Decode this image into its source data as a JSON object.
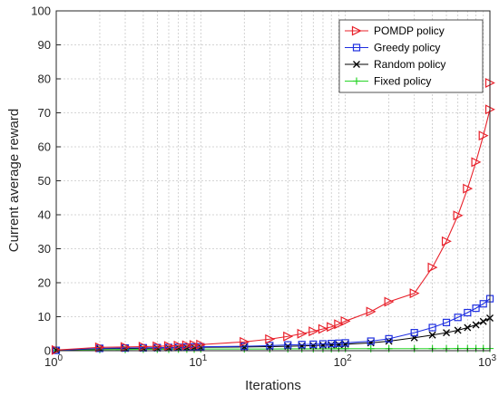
{
  "chart_data": {
    "type": "line",
    "xscale": "log",
    "xlim": [
      1,
      1000
    ],
    "ylim": [
      0,
      100
    ],
    "xlabel": "Iterations",
    "ylabel": "Current average reward",
    "grid": true,
    "legend_position": "top-right",
    "y_ticks": [
      0,
      10,
      20,
      30,
      40,
      50,
      60,
      70,
      80,
      90,
      100
    ],
    "x_ticks": [
      {
        "value": 1,
        "base": "10",
        "exp": "0"
      },
      {
        "value": 10,
        "base": "10",
        "exp": "1"
      },
      {
        "value": 100,
        "base": "10",
        "exp": "2"
      },
      {
        "value": 1000,
        "base": "10",
        "exp": "3"
      }
    ],
    "series": [
      {
        "name": "POMDP policy",
        "color": "#e8202a",
        "marker": "triangle-right",
        "points": [
          [
            1,
            0.2
          ],
          [
            2,
            1.0
          ],
          [
            3,
            1.1
          ],
          [
            4,
            1.2
          ],
          [
            5,
            1.3
          ],
          [
            6,
            1.4
          ],
          [
            7,
            1.5
          ],
          [
            8,
            1.6
          ],
          [
            9,
            1.7
          ],
          [
            10,
            1.8
          ],
          [
            20,
            2.6
          ],
          [
            30,
            3.4
          ],
          [
            40,
            4.2
          ],
          [
            50,
            5.0
          ],
          [
            60,
            5.7
          ],
          [
            70,
            6.4
          ],
          [
            80,
            7.0
          ],
          [
            90,
            7.8
          ],
          [
            100,
            8.7
          ],
          [
            150,
            11.5
          ],
          [
            200,
            14.4
          ],
          [
            300,
            16.9
          ],
          [
            400,
            24.5
          ],
          [
            500,
            32.2
          ],
          [
            600,
            39.8
          ],
          [
            700,
            47.7
          ],
          [
            800,
            55.5
          ],
          [
            900,
            63.3
          ],
          [
            1000,
            71.0
          ],
          [
            1050,
            78.8
          ]
        ]
      },
      {
        "name": "Greedy policy",
        "color": "#1f2fe0",
        "marker": "square",
        "points": [
          [
            1,
            0.1
          ],
          [
            2,
            0.7
          ],
          [
            3,
            0.8
          ],
          [
            4,
            0.85
          ],
          [
            5,
            0.9
          ],
          [
            6,
            0.95
          ],
          [
            7,
            1.0
          ],
          [
            8,
            1.05
          ],
          [
            9,
            1.1
          ],
          [
            10,
            1.15
          ],
          [
            20,
            1.3
          ],
          [
            30,
            1.5
          ],
          [
            40,
            1.7
          ],
          [
            50,
            1.8
          ],
          [
            60,
            1.9
          ],
          [
            70,
            2.0
          ],
          [
            80,
            2.1
          ],
          [
            90,
            2.2
          ],
          [
            100,
            2.3
          ],
          [
            150,
            2.8
          ],
          [
            200,
            3.5
          ],
          [
            300,
            5.3
          ],
          [
            400,
            6.8
          ],
          [
            500,
            8.3
          ],
          [
            600,
            9.8
          ],
          [
            700,
            11.2
          ],
          [
            800,
            12.5
          ],
          [
            900,
            13.8
          ],
          [
            1000,
            15.3
          ]
        ]
      },
      {
        "name": "Random policy",
        "color": "#000000",
        "marker": "x",
        "points": [
          [
            1,
            0.1
          ],
          [
            2,
            0.6
          ],
          [
            3,
            0.65
          ],
          [
            4,
            0.7
          ],
          [
            5,
            0.75
          ],
          [
            6,
            0.8
          ],
          [
            7,
            0.85
          ],
          [
            8,
            0.9
          ],
          [
            9,
            0.95
          ],
          [
            10,
            1.0
          ],
          [
            20,
            1.1
          ],
          [
            30,
            1.2
          ],
          [
            40,
            1.3
          ],
          [
            50,
            1.4
          ],
          [
            60,
            1.5
          ],
          [
            70,
            1.6
          ],
          [
            80,
            1.7
          ],
          [
            90,
            1.8
          ],
          [
            100,
            1.9
          ],
          [
            150,
            2.3
          ],
          [
            200,
            2.8
          ],
          [
            300,
            3.8
          ],
          [
            400,
            4.6
          ],
          [
            500,
            5.3
          ],
          [
            600,
            6.0
          ],
          [
            700,
            6.8
          ],
          [
            800,
            7.6
          ],
          [
            900,
            8.6
          ],
          [
            1000,
            9.6
          ]
        ]
      },
      {
        "name": "Fixed policy",
        "color": "#28d428",
        "marker": "plus",
        "points": [
          [
            1,
            0.1
          ],
          [
            2,
            0.3
          ],
          [
            3,
            0.35
          ],
          [
            4,
            0.4
          ],
          [
            5,
            0.4
          ],
          [
            6,
            0.4
          ],
          [
            7,
            0.45
          ],
          [
            8,
            0.45
          ],
          [
            9,
            0.45
          ],
          [
            10,
            0.5
          ],
          [
            20,
            0.5
          ],
          [
            30,
            0.5
          ],
          [
            40,
            0.55
          ],
          [
            50,
            0.55
          ],
          [
            60,
            0.55
          ],
          [
            70,
            0.55
          ],
          [
            80,
            0.55
          ],
          [
            90,
            0.6
          ],
          [
            100,
            0.6
          ],
          [
            150,
            0.6
          ],
          [
            200,
            0.6
          ],
          [
            300,
            0.6
          ],
          [
            400,
            0.6
          ],
          [
            500,
            0.6
          ],
          [
            600,
            0.65
          ],
          [
            700,
            0.65
          ],
          [
            800,
            0.65
          ],
          [
            900,
            0.65
          ],
          [
            1000,
            0.65
          ]
        ]
      }
    ]
  }
}
